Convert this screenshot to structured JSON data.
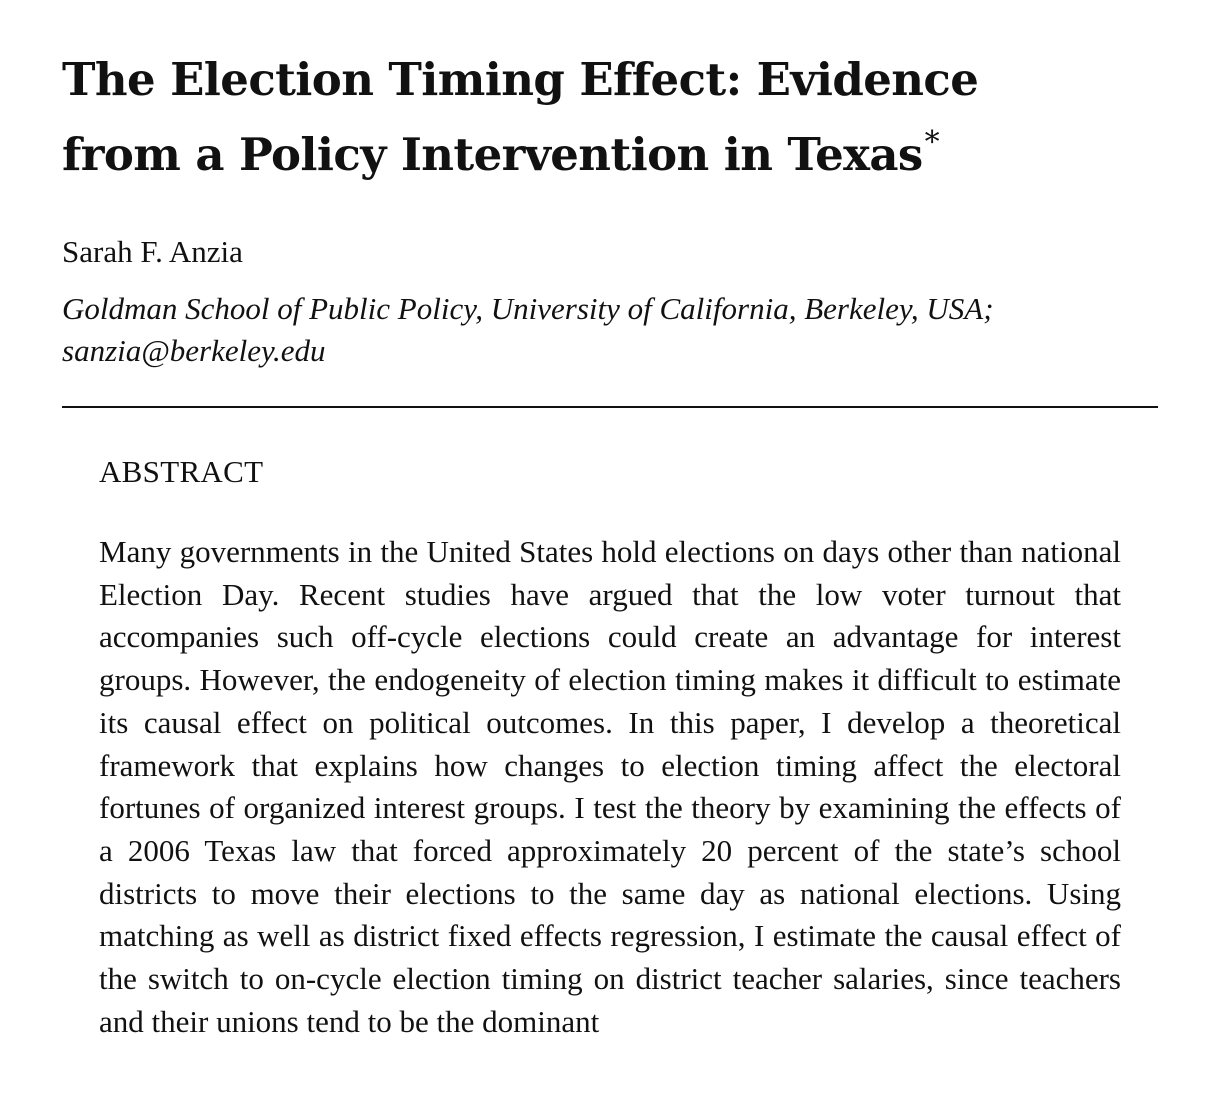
{
  "paper": {
    "title_line1": "The Election Timing Effect: Evidence",
    "title_line2": "from a Policy Intervention in Texas",
    "title_footnote_mark": "*",
    "author": "Sarah F. Anzia",
    "affiliation": "Goldman School of Public Policy, University of California, Berkeley, USA;",
    "email": "sanzia@berkeley.edu"
  },
  "abstract": {
    "heading": "ABSTRACT",
    "text": "Many governments in the United States hold elections on days other than national Election Day. Recent studies have argued that the low voter turnout that accompanies such off-cycle elections could create an advantage for interest groups. However, the endogeneity of election timing makes it difficult to estimate its causal effect on political out­comes. In this paper, I develop a theoretical framework that explains how changes to election timing affect the electoral fortunes of organized interest groups. I test the theory by examining the effects of a 2006 Texas law that forced approximately 20 percent of the state’s school districts to move their elections to the same day as national elections. Using matching as well as district fixed effects regression, I estimate the causal effect of the switch to on-cycle election timing on district teacher salaries, since teachers and their unions tend to be the dominant"
  }
}
